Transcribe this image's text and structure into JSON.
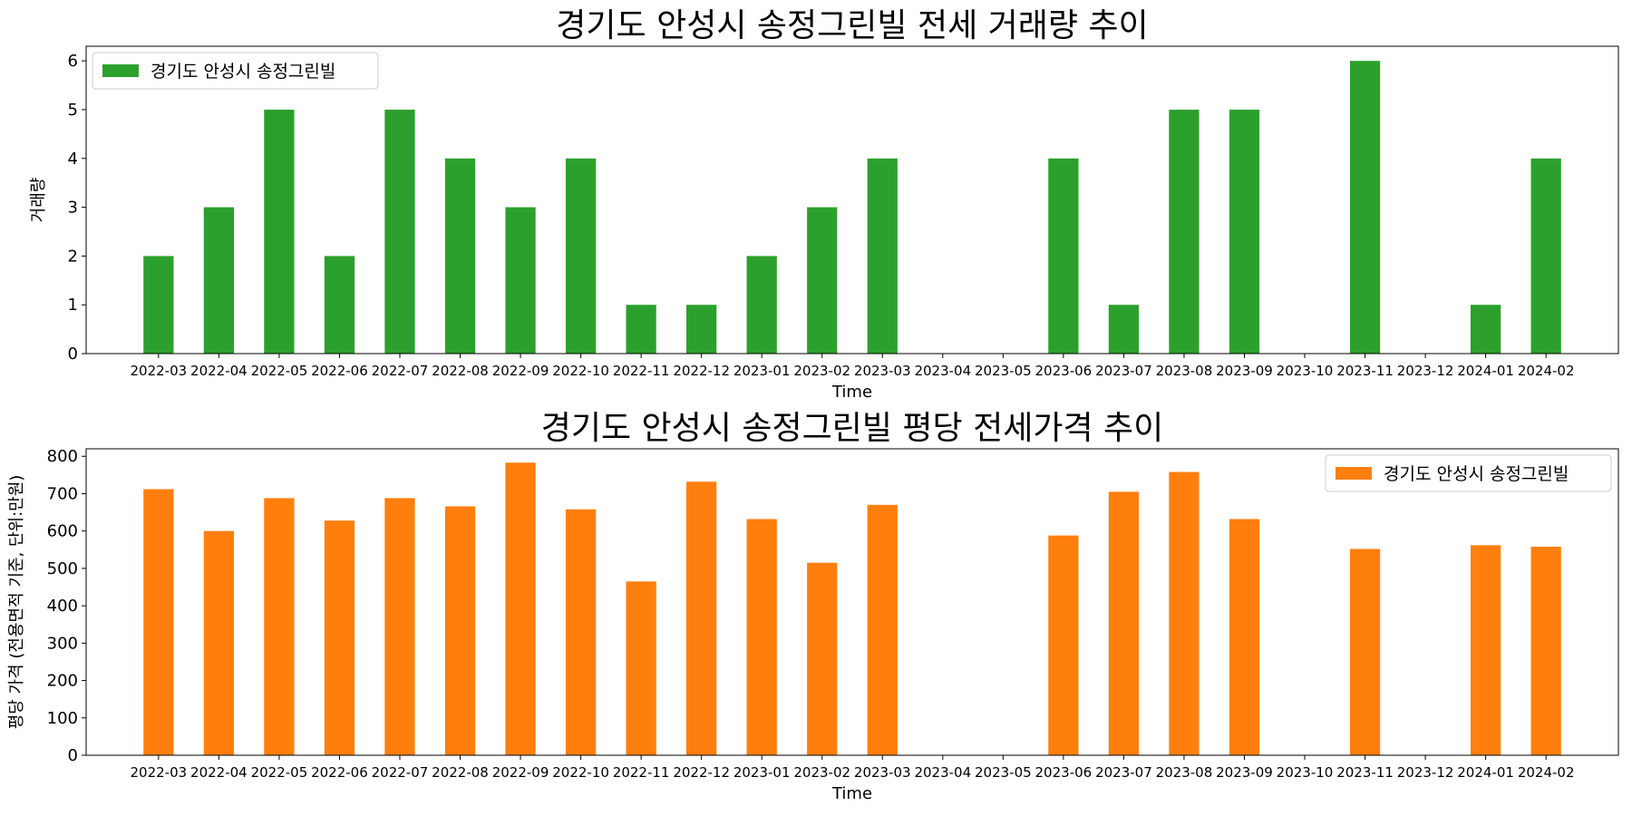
{
  "chart_data": [
    {
      "type": "bar",
      "title": "경기도 안성시 송정그린빌 전세 거래량 추이",
      "xlabel": "Time",
      "ylabel": "거래량",
      "ylim": [
        0,
        6.3
      ],
      "yticks": [
        0,
        1,
        2,
        3,
        4,
        5,
        6
      ],
      "color": "#2ca02c",
      "legend_position": "top-left",
      "categories": [
        "2022-03",
        "2022-04",
        "2022-05",
        "2022-06",
        "2022-07",
        "2022-08",
        "2022-09",
        "2022-10",
        "2022-11",
        "2022-12",
        "2023-01",
        "2023-02",
        "2023-03",
        "2023-04",
        "2023-05",
        "2023-06",
        "2023-07",
        "2023-08",
        "2023-09",
        "2023-10",
        "2023-11",
        "2023-12",
        "2024-01",
        "2024-02"
      ],
      "series": [
        {
          "name": "경기도 안성시 송정그린빌",
          "values": [
            2,
            3,
            5,
            2,
            5,
            4,
            3,
            4,
            1,
            1,
            2,
            3,
            4,
            0,
            0,
            4,
            1,
            5,
            5,
            0,
            6,
            0,
            1,
            4
          ]
        }
      ]
    },
    {
      "type": "bar",
      "title": "경기도 안성시 송정그린빌 평당 전세가격 추이",
      "xlabel": "Time",
      "ylabel": "평당 가격 (전용면적 기준, 단위:만원)",
      "ylim": [
        0,
        820
      ],
      "yticks": [
        0,
        100,
        200,
        300,
        400,
        500,
        600,
        700,
        800
      ],
      "color": "#ff7f0e",
      "legend_position": "top-right",
      "categories": [
        "2022-03",
        "2022-04",
        "2022-05",
        "2022-06",
        "2022-07",
        "2022-08",
        "2022-09",
        "2022-10",
        "2022-11",
        "2022-12",
        "2023-01",
        "2023-02",
        "2023-03",
        "2023-04",
        "2023-05",
        "2023-06",
        "2023-07",
        "2023-08",
        "2023-09",
        "2023-10",
        "2023-11",
        "2023-12",
        "2024-01",
        "2024-02"
      ],
      "series": [
        {
          "name": "경기도 안성시 송정그린빌",
          "values": [
            712,
            600,
            688,
            628,
            688,
            666,
            783,
            658,
            465,
            732,
            632,
            515,
            670,
            null,
            null,
            588,
            705,
            758,
            632,
            null,
            552,
            null,
            562,
            558
          ]
        }
      ]
    }
  ]
}
